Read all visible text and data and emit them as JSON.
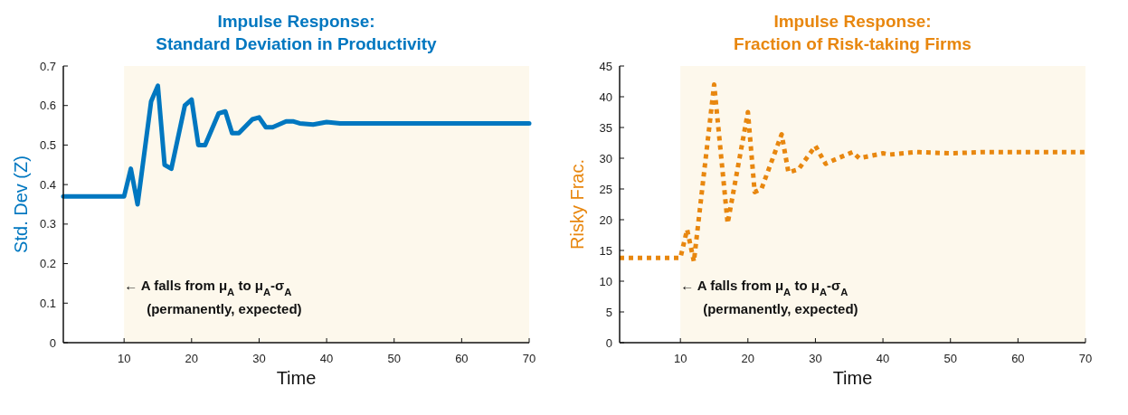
{
  "chart_data": [
    {
      "type": "line",
      "title": "Impulse Response:\nStandard Deviation in Productivity",
      "xlabel": "Time",
      "ylabel": "Std. Dev (Z)",
      "xlim": [
        1,
        70
      ],
      "xticks": [
        10,
        20,
        30,
        40,
        50,
        60,
        70
      ],
      "ylim": [
        0,
        0.7
      ],
      "yticks": [
        0,
        0.1,
        0.2,
        0.3,
        0.4,
        0.5,
        0.6,
        0.7
      ],
      "line_style": "solid",
      "bands": [
        {
          "axis": "x",
          "from": 10,
          "to": 70,
          "color": "#fdf8ec"
        }
      ],
      "annotations": [
        "← A falls from μ$_{A}$ to μ$_{A}$-σ$_{A}$",
        "(permanently, expected)"
      ],
      "series": [
        {
          "color": "#0077c0",
          "x": [
            1,
            10,
            11,
            12,
            14,
            15,
            16,
            17,
            19,
            20,
            21,
            22,
            24,
            25,
            26,
            27,
            29,
            30,
            31,
            32,
            34,
            35,
            36,
            38,
            40,
            42,
            70
          ],
          "values": [
            0.37,
            0.37,
            0.44,
            0.35,
            0.61,
            0.65,
            0.45,
            0.44,
            0.6,
            0.615,
            0.5,
            0.5,
            0.58,
            0.585,
            0.53,
            0.53,
            0.565,
            0.57,
            0.545,
            0.545,
            0.56,
            0.56,
            0.555,
            0.552,
            0.558,
            0.555,
            0.555
          ]
        }
      ]
    },
    {
      "type": "line",
      "title": "Impulse Response:\nFraction of Risk-taking Firms",
      "xlabel": "Time",
      "ylabel": "Risky Frac.",
      "xlim": [
        1,
        70
      ],
      "xticks": [
        10,
        20,
        30,
        40,
        50,
        60,
        70
      ],
      "ylim": [
        0,
        45
      ],
      "yticks": [
        0,
        5,
        10,
        15,
        20,
        25,
        30,
        35,
        40,
        45
      ],
      "line_style": "dotted",
      "bands": [
        {
          "axis": "x",
          "from": 10,
          "to": 70,
          "color": "#fdf8ec"
        }
      ],
      "annotations": [
        "← A  falls from μ$_{A}$ to μ$_{A}$-σ$_{A}$",
        "(permanently, expected)"
      ],
      "series": [
        {
          "color": "#e8870f",
          "x": [
            1,
            10,
            11,
            12,
            15,
            17,
            20,
            21,
            22,
            25,
            26,
            27.5,
            30,
            31.5,
            32.5,
            35.5,
            36.5,
            40,
            41,
            45,
            50,
            55,
            70
          ],
          "values": [
            13.8,
            13.8,
            18.4,
            13.2,
            42,
            19.4,
            37.5,
            24.5,
            25,
            33.9,
            27.7,
            28.2,
            32,
            29.1,
            29.6,
            31,
            30,
            30.8,
            30.6,
            31,
            30.8,
            31,
            31
          ]
        }
      ]
    }
  ]
}
